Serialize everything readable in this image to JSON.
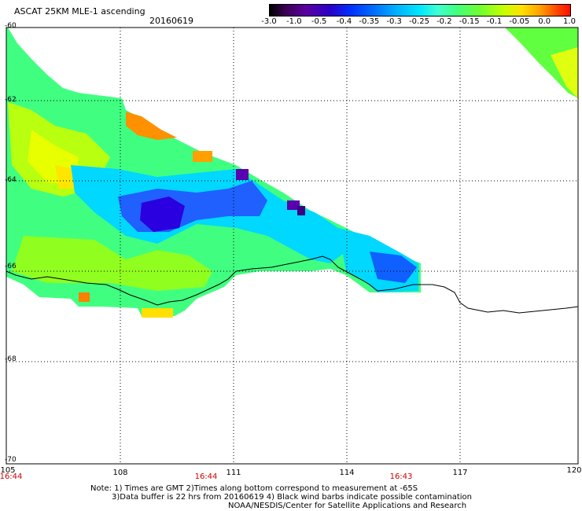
{
  "header": {
    "product": "ASCAT 25KM MLE-1 ascending",
    "date": "20160619"
  },
  "colorbar": {
    "labels": [
      "-3.0",
      "-1.0",
      "-0.5",
      "-0.4",
      "-0.35",
      "-0.3",
      "-0.25",
      "-0.2",
      "-0.15",
      "-0.1",
      "-0.05",
      "0.0",
      "1.0"
    ],
    "colors": [
      "#000000",
      "#5a0080",
      "#2a00c8",
      "#0040ff",
      "#0090ff",
      "#00d8ff",
      "#40ffd0",
      "#40ff80",
      "#80ff20",
      "#d0ff00",
      "#ffe000",
      "#ff9000",
      "#ff2000"
    ]
  },
  "map": {
    "lat_labels": [
      "-60",
      "-62",
      "-64",
      "-66",
      "-68",
      "-70"
    ],
    "lon_labels": [
      "105",
      "108",
      "111",
      "114",
      "117",
      "120"
    ],
    "time_labels": [
      "16:44",
      "16:44",
      "16:43"
    ]
  },
  "notes": {
    "line1": "Note: 1) Times are GMT 2)Times along bottom correspond to measurement at -65S",
    "line2": "3)Data buffer is 22 hrs from 20160619 4) Black wind barbs indicate possible contamination",
    "line3": "NOAA/NESDIS/Center for Satellite Applications and Research"
  }
}
